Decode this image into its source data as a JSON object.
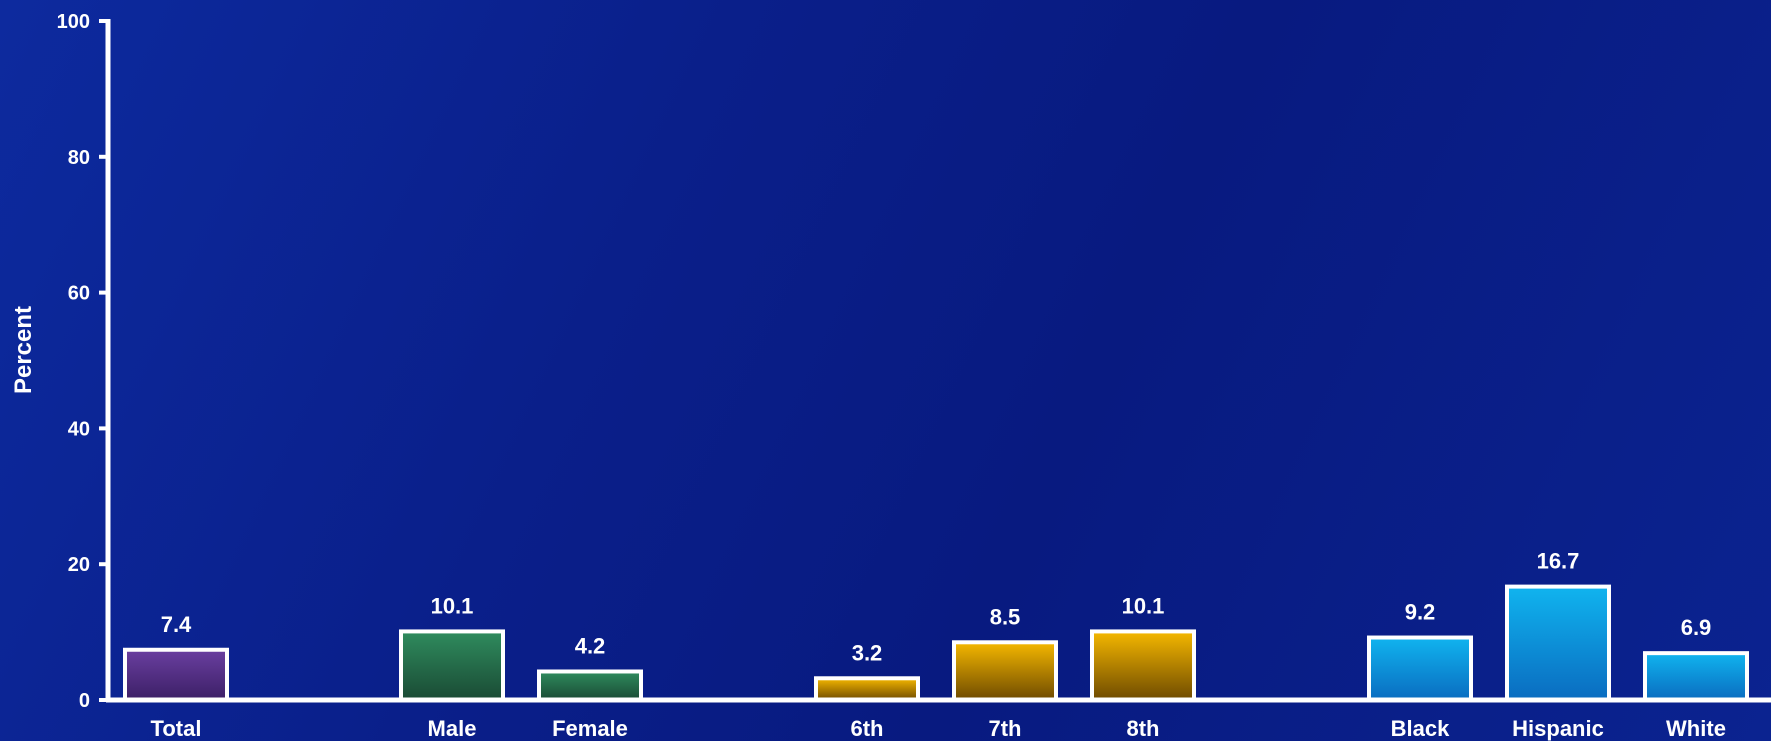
{
  "chart_data": {
    "type": "bar",
    "ylabel": "Percent",
    "xlabel": "",
    "title": "",
    "ylim": [
      0,
      100
    ],
    "yticks": [
      0,
      20,
      40,
      60,
      80,
      100
    ],
    "grid": false,
    "categories": [
      "Total",
      "Male",
      "Female",
      "6th",
      "7th",
      "8th",
      "Black",
      "Hispanic",
      "White"
    ],
    "values": [
      7.4,
      10.1,
      4.2,
      3.2,
      8.5,
      10.1,
      9.2,
      16.7,
      6.9
    ],
    "value_labels": [
      "7.4",
      "10.1",
      "4.2",
      "3.2",
      "8.5",
      "10.1",
      "9.2",
      "16.7",
      "6.9"
    ],
    "groups": [
      {
        "categories": [
          "Total"
        ],
        "color": "#6a3fa0",
        "color_dark": "#3c1f66"
      },
      {
        "categories": [
          "Male",
          "Female"
        ],
        "color": "#2f8c5e",
        "color_dark": "#1a4a34"
      },
      {
        "categories": [
          "6th",
          "7th",
          "8th"
        ],
        "color": "#f5b800",
        "color_dark": "#6e4a00"
      },
      {
        "categories": [
          "Black",
          "Hispanic",
          "White"
        ],
        "color": "#10b4ef",
        "color_dark": "#0a6cc0"
      }
    ],
    "colors": {
      "axis": "#ffffff",
      "bar_border": "#ffffff",
      "text": "#ffffff"
    }
  }
}
